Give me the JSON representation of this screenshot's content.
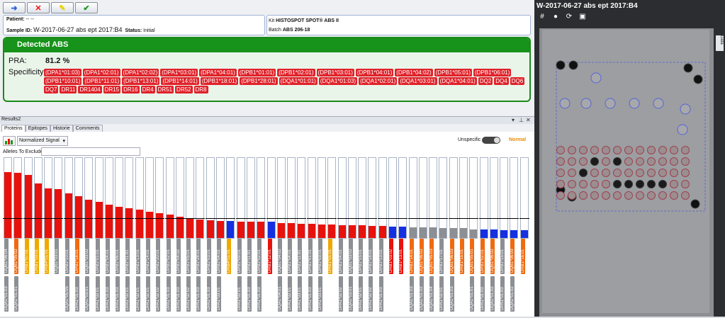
{
  "toolbar": {
    "buttons": [
      {
        "name": "back-button",
        "icon": "arrow-back-icon",
        "color": "#2b5fd8"
      },
      {
        "name": "cancel-button",
        "icon": "close-icon",
        "color": "#e11"
      },
      {
        "name": "edit-button",
        "icon": "pencil-icon",
        "color": "#e8d000"
      },
      {
        "name": "confirm-button",
        "icon": "check-icon",
        "color": "#1a9a1a"
      }
    ]
  },
  "patient": {
    "patient_label": "Patient:",
    "patient_value": "-- --",
    "sample_label": "Sample ID:",
    "sample_value": "W-2017-06-27 abs ept 2017:B4",
    "status_label": "Status:",
    "status_value": "Initial"
  },
  "kit": {
    "kit_label": "Kit",
    "kit_value": "HISTOSPOT SPOT® ABS II",
    "batch_label": "Batch",
    "batch_value": "ABS 206-18"
  },
  "detected": {
    "title": "Detected ABS",
    "pra_label": "PRA:",
    "pra_value": "81.2 %",
    "spec_label": "Specificity:",
    "specificities": [
      "(DPA1*01:03)",
      "(DPA1*02:01)",
      "(DPA1*02:02)",
      "(DPA1*03:01)",
      "(DPA1*04:01)",
      "(DPB1*01:01)",
      "(DPB1*02:01)",
      "(DPB1*03:01)",
      "(DPB1*04:01)",
      "(DPB1*04:02)",
      "(DPB1*05:01)",
      "(DPB1*06:01)",
      "(DPB1*10:01)",
      "(DPB1*11:01)",
      "(DPB1*13:01)",
      "(DPB1*14:01)",
      "(DPB1*18:01)",
      "(DPB1*28:01)",
      "(DQA1*01:01)",
      "(DQA1*01:03)",
      "(DQA1*02:01)",
      "(DQA1*03:01)",
      "(DQA1*04:01)",
      "DQ2",
      "DQ4",
      "DQ6",
      "DQ7",
      "DR11",
      "DR1404",
      "DR15",
      "DR16",
      "DR4",
      "DR51",
      "DR52",
      "DR8"
    ]
  },
  "results": {
    "title": "Results2",
    "tabs": [
      "Proteins",
      "Epitopes",
      "Historie",
      "Comments"
    ],
    "signal_select": "Normalized Signal",
    "unspecific_label": "Unspecific",
    "normal_label": "Normal",
    "exclude_label": "Alleles To Exclude:",
    "exclude_value": ""
  },
  "chart_data": {
    "type": "bar",
    "ylim": [
      0,
      1
    ],
    "colors": {
      "positive": "#e8120c",
      "blue": "#1530e0",
      "neutral": "#8c8f93"
    },
    "bars": [
      {
        "v": 0.82,
        "c": "positive",
        "top": "DQB1*06:04",
        "ttone": "gray",
        "bot": "DQA1*01:03",
        "btone": "gray"
      },
      {
        "v": 0.81,
        "c": "positive",
        "top": "DQB1*05:02",
        "ttone": "orange",
        "bot": "DQA1*01:01",
        "btone": "gray"
      },
      {
        "v": 0.79,
        "c": "positive",
        "top": "DRB1*07:01",
        "ttone": "yellow",
        "bot": "",
        "btone": ""
      },
      {
        "v": 0.68,
        "c": "positive",
        "top": "DRB1*03:01",
        "ttone": "yellow",
        "bot": "",
        "btone": ""
      },
      {
        "v": 0.62,
        "c": "positive",
        "top": "DRB4*01:01",
        "ttone": "yellow",
        "bot": "",
        "btone": ""
      },
      {
        "v": 0.61,
        "c": "positive",
        "top": "DQB1*03:01",
        "ttone": "gray",
        "bot": "",
        "btone": ""
      },
      {
        "v": 0.56,
        "c": "positive",
        "top": "DPB1*10:01",
        "ttone": "gray",
        "bot": "DQA1*05:05",
        "btone": "gray"
      },
      {
        "v": 0.52,
        "c": "positive",
        "top": "DPB1*18:01",
        "ttone": "orange",
        "bot": "DPA1*01:03",
        "btone": "gray"
      },
      {
        "v": 0.48,
        "c": "positive",
        "top": "DQB1*03:02",
        "ttone": "gray",
        "bot": "DQA1*03:01",
        "btone": "gray"
      },
      {
        "v": 0.45,
        "c": "positive",
        "top": "DPB1*01:01",
        "ttone": "gray",
        "bot": "DPA1*02:01",
        "btone": "gray"
      },
      {
        "v": 0.42,
        "c": "positive",
        "top": "DPB1*04:01",
        "ttone": "gray",
        "bot": "DPA1*01:03",
        "btone": "gray"
      },
      {
        "v": 0.39,
        "c": "positive",
        "top": "DPB1*06:01",
        "ttone": "gray",
        "bot": "DPA1*01:03",
        "btone": "gray"
      },
      {
        "v": 0.37,
        "c": "positive",
        "top": "DPB1*11:01",
        "ttone": "gray",
        "bot": "DPA1*02:01",
        "btone": "gray"
      },
      {
        "v": 0.35,
        "c": "positive",
        "top": "DPB1*13:01",
        "ttone": "gray",
        "bot": "DPA1*02:01",
        "btone": "gray"
      },
      {
        "v": 0.33,
        "c": "positive",
        "top": "DPB1*14:01",
        "ttone": "gray",
        "bot": "DPA1*02:01",
        "btone": "gray"
      },
      {
        "v": 0.31,
        "c": "positive",
        "top": "DPB1*20:01",
        "ttone": "gray",
        "bot": "DPA1*02:02",
        "btone": "gray"
      },
      {
        "v": 0.29,
        "c": "positive",
        "top": "DPB1*02:01",
        "ttone": "gray",
        "bot": "DPA1*01:03",
        "btone": "gray"
      },
      {
        "v": 0.27,
        "c": "positive",
        "top": "DPB1*04:02",
        "ttone": "gray",
        "bot": "DPA1*01:03",
        "btone": "gray"
      },
      {
        "v": 0.25,
        "c": "positive",
        "top": "DPB1*05:01",
        "ttone": "gray",
        "bot": "DPA1*02:02",
        "btone": "gray"
      },
      {
        "v": 0.23,
        "c": "positive",
        "top": "DPB1*28:01",
        "ttone": "gray",
        "bot": "DPA1*01:03",
        "btone": "gray"
      },
      {
        "v": 0.22,
        "c": "positive",
        "top": "DPB1*03:01",
        "ttone": "gray",
        "bot": "DPA1*01:03",
        "btone": "gray"
      },
      {
        "v": 0.21,
        "c": "positive",
        "top": "DPB1*04:01",
        "ttone": "gray",
        "bot": "DPA1*03:01",
        "btone": "gray"
      },
      {
        "v": 0.21,
        "c": "blue",
        "top": "DRB4*01:01",
        "ttone": "yellow",
        "bot": "",
        "btone": ""
      },
      {
        "v": 0.2,
        "c": "positive",
        "top": "DPB1*09:01",
        "ttone": "gray",
        "bot": "DPA1*02:01",
        "btone": "gray"
      },
      {
        "v": 0.2,
        "c": "positive",
        "top": "DPB1*11:01",
        "ttone": "gray",
        "bot": "DPA1*01:03",
        "btone": "gray"
      },
      {
        "v": 0.2,
        "c": "positive",
        "top": "DPB1*02:01",
        "ttone": "gray",
        "bot": "DPA1*01:03",
        "btone": "gray"
      },
      {
        "v": 0.2,
        "c": "blue",
        "top": "DRB1*12:01",
        "ttone": "red",
        "bot": "",
        "btone": ""
      },
      {
        "v": 0.19,
        "c": "positive",
        "top": "DQB1*04:02",
        "ttone": "gray",
        "bot": "DQA1*04:01",
        "btone": "gray"
      },
      {
        "v": 0.19,
        "c": "positive",
        "top": "DPB1*04:01",
        "ttone": "gray",
        "bot": "DPA1*02:01",
        "btone": "gray"
      },
      {
        "v": 0.18,
        "c": "positive",
        "top": "DPB1*11:01",
        "ttone": "gray",
        "bot": "DPA1*03:01",
        "btone": "gray"
      },
      {
        "v": 0.18,
        "c": "positive",
        "top": "DPB1*01:01",
        "ttone": "gray",
        "bot": "DPA1*01:03",
        "btone": "gray"
      },
      {
        "v": 0.17,
        "c": "positive",
        "top": "DPB1*03:01",
        "ttone": "gray",
        "bot": "DPA1*03:01",
        "btone": "gray"
      },
      {
        "v": 0.17,
        "c": "positive",
        "top": "DRB1*01:01",
        "ttone": "yellow",
        "bot": "",
        "btone": ""
      },
      {
        "v": 0.16,
        "c": "positive",
        "top": "DPB1*04:01",
        "ttone": "gray",
        "bot": "DPA1*02:02",
        "btone": "gray"
      },
      {
        "v": 0.16,
        "c": "positive",
        "top": "DQB1*03:02",
        "ttone": "gray",
        "bot": "DQA1*03:01",
        "btone": "gray"
      },
      {
        "v": 0.16,
        "c": "positive",
        "top": "DPB1*15:01",
        "ttone": "gray",
        "bot": "DPA1*02:01",
        "btone": "gray"
      },
      {
        "v": 0.15,
        "c": "positive",
        "top": "DPB1*18:01",
        "ttone": "gray",
        "bot": "DPA1*02:02",
        "btone": "gray"
      },
      {
        "v": 0.15,
        "c": "positive",
        "top": "DPB1*13:01",
        "ttone": "gray",
        "bot": "DPA1*01:03",
        "btone": "gray"
      },
      {
        "v": 0.14,
        "c": "blue",
        "top": "DRB1*03:02",
        "ttone": "red",
        "bot": "",
        "btone": ""
      },
      {
        "v": 0.14,
        "c": "blue",
        "top": "DRB1*13:01",
        "ttone": "red",
        "bot": "",
        "btone": ""
      },
      {
        "v": 0.13,
        "c": "neutral",
        "top": "DRB1*14:01",
        "ttone": "orange",
        "bot": "DQA1*01:03",
        "btone": "gray"
      },
      {
        "v": 0.13,
        "c": "neutral",
        "top": "DQB1*06:02",
        "ttone": "orange",
        "bot": "DQA1*01:02",
        "btone": "gray"
      },
      {
        "v": 0.13,
        "c": "neutral",
        "top": "DQB1*05:03",
        "ttone": "orange",
        "bot": "DQA1*01:04",
        "btone": "gray"
      },
      {
        "v": 0.12,
        "c": "neutral",
        "top": "DPB1*17:01",
        "ttone": "gray",
        "bot": "DPA1*02:01",
        "btone": "gray"
      },
      {
        "v": 0.12,
        "c": "neutral",
        "top": "DQB1*06:03",
        "ttone": "orange",
        "bot": "DQA1*01:03",
        "btone": "gray"
      },
      {
        "v": 0.12,
        "c": "neutral",
        "top": "DRB1*15:01",
        "ttone": "orange",
        "bot": "",
        "btone": ""
      },
      {
        "v": 0.11,
        "c": "neutral",
        "top": "DQB1*05:01",
        "ttone": "orange",
        "bot": "DQA1*01:01",
        "btone": "gray"
      },
      {
        "v": 0.11,
        "c": "blue",
        "top": "DPB1*02:01",
        "ttone": "orange",
        "bot": "DPA1*01:03",
        "btone": "gray"
      },
      {
        "v": 0.11,
        "c": "blue",
        "top": "DQB1*06:02",
        "ttone": "orange",
        "bot": "DQA1*01:02",
        "btone": "gray"
      },
      {
        "v": 0.1,
        "c": "blue",
        "top": "DPB1*15:01",
        "ttone": "gray",
        "bot": "DPA1*01:03",
        "btone": "gray"
      },
      {
        "v": 0.1,
        "c": "blue",
        "top": "DQB1*06:09",
        "ttone": "orange",
        "bot": "DQA1*01:02",
        "btone": "gray"
      },
      {
        "v": 0.1,
        "c": "blue",
        "top": "DRB1*16:01",
        "ttone": "orange",
        "bot": "",
        "btone": ""
      }
    ]
  },
  "image_panel": {
    "title": "W-2017-06-27 abs ept 2017:B4",
    "sidetab": "Data",
    "tools": [
      {
        "name": "grid-icon",
        "glyph": "#"
      },
      {
        "name": "contrast-icon",
        "glyph": "●"
      },
      {
        "name": "refresh-icon",
        "glyph": "⟳"
      },
      {
        "name": "image-view-icon",
        "glyph": "▣"
      }
    ]
  }
}
